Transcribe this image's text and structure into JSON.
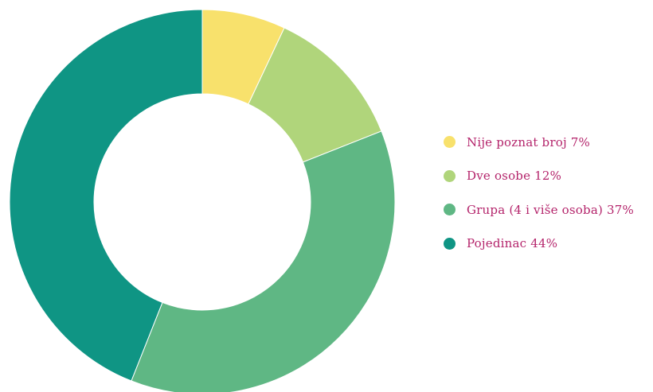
{
  "chart_data": {
    "type": "pie",
    "variant": "donut",
    "slices": [
      {
        "label": "Nije poznat broj",
        "value": 7,
        "display": "Nije poznat broj 7%",
        "color": "#f8e16c"
      },
      {
        "label": "Dve osobe",
        "value": 12,
        "display": "Dve osobe 12%",
        "color": "#b0d57b"
      },
      {
        "label": "Grupa (4 i više osoba)",
        "value": 37,
        "display": "Grupa (4 i više osoba) 37%",
        "color": "#5fb784"
      },
      {
        "label": "Pojedinac",
        "value": 44,
        "display": "Pojedinac 44%",
        "color": "#0f9584"
      }
    ],
    "legend_position": "right",
    "legend_text_color": "#b4246b"
  }
}
